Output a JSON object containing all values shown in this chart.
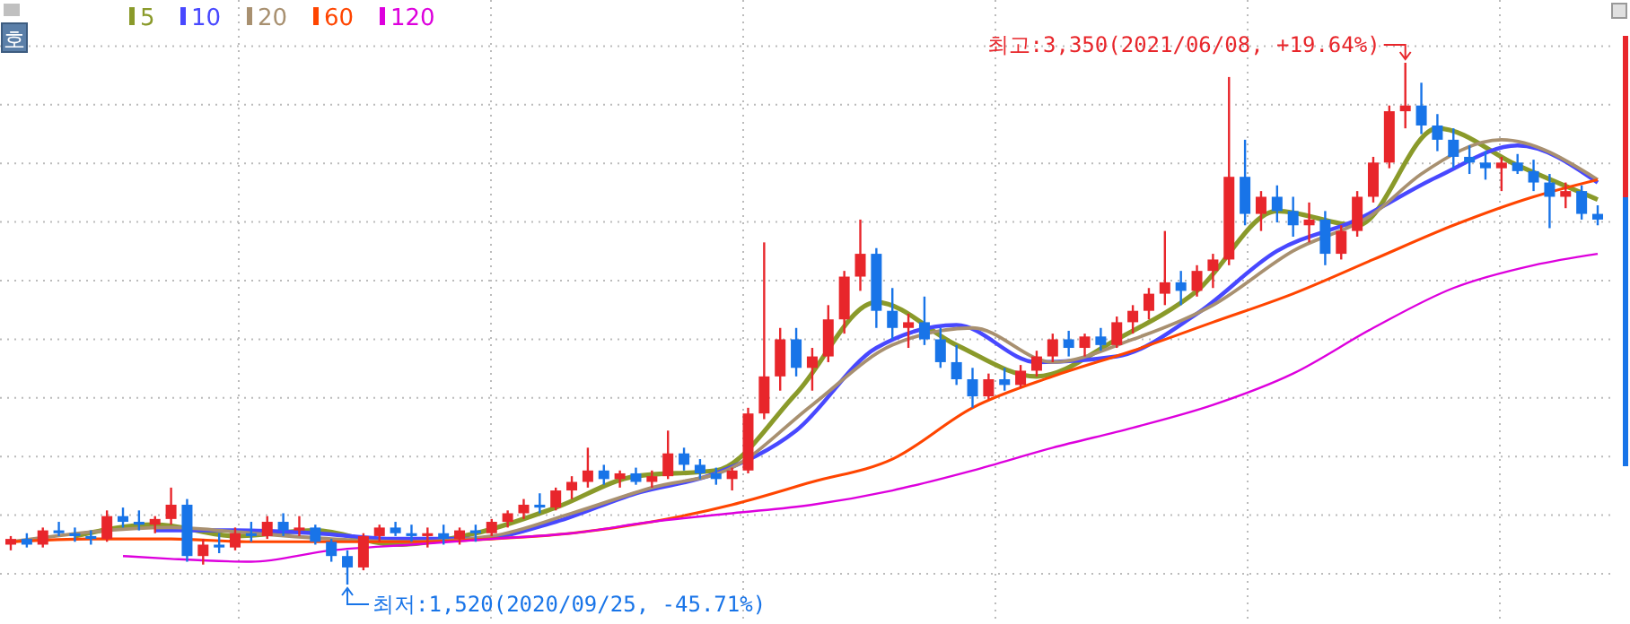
{
  "chart_data": {
    "type": "candlestick",
    "categories": [
      null,
      null,
      null,
      null,
      null,
      null,
      null,
      null,
      null,
      null,
      null,
      null,
      null,
      null,
      null,
      null,
      null,
      null,
      null,
      null,
      null,
      null,
      null,
      null,
      null,
      null,
      null,
      null,
      null,
      null,
      null,
      null,
      null,
      null,
      null,
      null,
      null,
      null,
      null,
      null,
      null,
      null,
      null,
      null,
      null,
      null,
      null,
      null,
      null,
      null,
      null,
      null,
      null,
      null,
      null,
      null,
      null,
      null,
      null,
      null,
      null,
      null,
      null,
      null,
      null,
      null,
      null,
      null,
      null,
      null,
      null,
      null,
      null,
      null,
      null,
      null,
      null,
      null,
      null,
      null,
      null,
      null,
      null,
      null,
      null,
      null,
      null,
      null,
      null,
      null,
      null,
      null,
      null,
      null,
      null,
      null,
      null,
      null,
      null,
      null
    ],
    "ohlc": [
      [
        1660,
        1690,
        1640,
        1680
      ],
      [
        1680,
        1700,
        1650,
        1660
      ],
      [
        1660,
        1720,
        1650,
        1710
      ],
      [
        1710,
        1740,
        1690,
        1700
      ],
      [
        1700,
        1720,
        1670,
        1690
      ],
      [
        1690,
        1710,
        1660,
        1680
      ],
      [
        1680,
        1780,
        1670,
        1760
      ],
      [
        1760,
        1790,
        1720,
        1740
      ],
      [
        1740,
        1780,
        1710,
        1730
      ],
      [
        1730,
        1760,
        1700,
        1750
      ],
      [
        1750,
        1860,
        1730,
        1800
      ],
      [
        1800,
        1820,
        1600,
        1620
      ],
      [
        1620,
        1680,
        1590,
        1660
      ],
      [
        1660,
        1700,
        1630,
        1650
      ],
      [
        1650,
        1720,
        1640,
        1700
      ],
      [
        1700,
        1740,
        1670,
        1690
      ],
      [
        1690,
        1760,
        1680,
        1740
      ],
      [
        1740,
        1770,
        1690,
        1710
      ],
      [
        1710,
        1760,
        1690,
        1720
      ],
      [
        1720,
        1730,
        1660,
        1670
      ],
      [
        1670,
        1680,
        1600,
        1620
      ],
      [
        1620,
        1640,
        1520,
        1580
      ],
      [
        1580,
        1700,
        1570,
        1690
      ],
      [
        1690,
        1730,
        1670,
        1720
      ],
      [
        1720,
        1740,
        1690,
        1700
      ],
      [
        1700,
        1730,
        1670,
        1690
      ],
      [
        1690,
        1720,
        1650,
        1700
      ],
      [
        1700,
        1730,
        1660,
        1680
      ],
      [
        1680,
        1720,
        1660,
        1710
      ],
      [
        1710,
        1730,
        1670,
        1700
      ],
      [
        1700,
        1750,
        1690,
        1740
      ],
      [
        1740,
        1780,
        1720,
        1770
      ],
      [
        1770,
        1820,
        1750,
        1800
      ],
      [
        1800,
        1840,
        1770,
        1790
      ],
      [
        1790,
        1860,
        1780,
        1850
      ],
      [
        1850,
        1900,
        1820,
        1880
      ],
      [
        1880,
        2000,
        1860,
        1920
      ],
      [
        1920,
        1940,
        1870,
        1890
      ],
      [
        1890,
        1920,
        1860,
        1910
      ],
      [
        1910,
        1930,
        1870,
        1880
      ],
      [
        1880,
        1920,
        1860,
        1900
      ],
      [
        1900,
        2060,
        1890,
        1980
      ],
      [
        1980,
        2000,
        1920,
        1940
      ],
      [
        1940,
        1960,
        1890,
        1910
      ],
      [
        1910,
        1930,
        1870,
        1890
      ],
      [
        1890,
        1930,
        1850,
        1920
      ],
      [
        1920,
        2140,
        1910,
        2120
      ],
      [
        2120,
        2720,
        2100,
        2250
      ],
      [
        2250,
        2420,
        2200,
        2380
      ],
      [
        2380,
        2420,
        2250,
        2280
      ],
      [
        2280,
        2350,
        2200,
        2320
      ],
      [
        2320,
        2500,
        2300,
        2450
      ],
      [
        2450,
        2620,
        2400,
        2600
      ],
      [
        2600,
        2800,
        2550,
        2680
      ],
      [
        2680,
        2700,
        2420,
        2480
      ],
      [
        2480,
        2560,
        2380,
        2420
      ],
      [
        2420,
        2470,
        2350,
        2440
      ],
      [
        2440,
        2530,
        2360,
        2380
      ],
      [
        2380,
        2420,
        2280,
        2300
      ],
      [
        2300,
        2360,
        2220,
        2240
      ],
      [
        2240,
        2280,
        2140,
        2180
      ],
      [
        2180,
        2260,
        2170,
        2240
      ],
      [
        2240,
        2280,
        2200,
        2220
      ],
      [
        2220,
        2290,
        2210,
        2270
      ],
      [
        2270,
        2340,
        2250,
        2320
      ],
      [
        2320,
        2400,
        2300,
        2380
      ],
      [
        2380,
        2410,
        2320,
        2350
      ],
      [
        2350,
        2400,
        2320,
        2390
      ],
      [
        2390,
        2420,
        2340,
        2360
      ],
      [
        2360,
        2460,
        2350,
        2440
      ],
      [
        2440,
        2500,
        2400,
        2480
      ],
      [
        2480,
        2560,
        2450,
        2540
      ],
      [
        2540,
        2760,
        2500,
        2580
      ],
      [
        2580,
        2620,
        2500,
        2550
      ],
      [
        2550,
        2640,
        2530,
        2620
      ],
      [
        2620,
        2680,
        2560,
        2660
      ],
      [
        2660,
        3300,
        2640,
        2950
      ],
      [
        2950,
        3080,
        2780,
        2820
      ],
      [
        2820,
        2900,
        2760,
        2880
      ],
      [
        2880,
        2920,
        2790,
        2830
      ],
      [
        2830,
        2880,
        2740,
        2780
      ],
      [
        2780,
        2860,
        2720,
        2800
      ],
      [
        2800,
        2830,
        2640,
        2680
      ],
      [
        2680,
        2780,
        2660,
        2760
      ],
      [
        2760,
        2900,
        2740,
        2880
      ],
      [
        2880,
        3020,
        2860,
        3000
      ],
      [
        3000,
        3200,
        2980,
        3180
      ],
      [
        3180,
        3350,
        3120,
        3200
      ],
      [
        3200,
        3280,
        3100,
        3130
      ],
      [
        3130,
        3170,
        3040,
        3080
      ],
      [
        3080,
        3120,
        2980,
        3020
      ],
      [
        3020,
        3060,
        2960,
        3000
      ],
      [
        3000,
        3040,
        2940,
        2980
      ],
      [
        2980,
        3020,
        2900,
        3000
      ],
      [
        3000,
        3030,
        2960,
        2970
      ],
      [
        2970,
        3010,
        2900,
        2930
      ],
      [
        2930,
        2960,
        2770,
        2880
      ],
      [
        2880,
        2930,
        2840,
        2900
      ],
      [
        2900,
        2920,
        2800,
        2820
      ],
      [
        2820,
        2850,
        2780,
        2800
      ]
    ],
    "colors": [
      "#e8262b",
      "#1874e8",
      "#e8262b",
      "#1874e8",
      "#1874e8",
      "#1874e8",
      "#e8262b",
      "#1874e8",
      "#1874e8",
      "#e8262b",
      "#e8262b",
      "#1874e8",
      "#e8262b",
      "#1874e8",
      "#e8262b",
      "#1874e8",
      "#e8262b",
      "#1874e8",
      "#e8262b",
      "#1874e8",
      "#1874e8",
      "#1874e8",
      "#e8262b",
      "#e8262b",
      "#1874e8",
      "#1874e8",
      "#e8262b",
      "#1874e8",
      "#e8262b",
      "#1874e8",
      "#e8262b",
      "#e8262b",
      "#e8262b",
      "#1874e8",
      "#e8262b",
      "#e8262b",
      "#e8262b",
      "#1874e8",
      "#e8262b",
      "#1874e8",
      "#e8262b",
      "#e8262b",
      "#1874e8",
      "#1874e8",
      "#1874e8",
      "#e8262b",
      "#e8262b",
      "#e8262b",
      "#e8262b",
      "#1874e8",
      "#e8262b",
      "#e8262b",
      "#e8262b",
      "#e8262b",
      "#1874e8",
      "#1874e8",
      "#e8262b",
      "#1874e8",
      "#1874e8",
      "#1874e8",
      "#1874e8",
      "#e8262b",
      "#1874e8",
      "#e8262b",
      "#e8262b",
      "#e8262b",
      "#1874e8",
      "#e8262b",
      "#1874e8",
      "#e8262b",
      "#e8262b",
      "#e8262b",
      "#e8262b",
      "#1874e8",
      "#e8262b",
      "#e8262b",
      "#e8262b",
      "#1874e8",
      "#e8262b",
      "#1874e8",
      "#1874e8",
      "#e8262b",
      "#1874e8",
      "#e8262b",
      "#e8262b",
      "#e8262b",
      "#e8262b",
      "#e8262b",
      "#1874e8",
      "#1874e8",
      "#1874e8",
      "#1874e8",
      "#1874e8",
      "#e8262b",
      "#1874e8",
      "#1874e8",
      "#1874e8",
      "#e8262b",
      "#1874e8",
      "#1874e8"
    ],
    "series": [
      {
        "name": "5",
        "type": "line",
        "color": "#8a9a2a",
        "values": [
          null,
          null,
          null,
          null,
          1690,
          null,
          null,
          null,
          null,
          1730,
          null,
          null,
          null,
          null,
          1690,
          null,
          null,
          null,
          null,
          1710,
          null,
          null,
          null,
          null,
          1660,
          null,
          null,
          null,
          null,
          1700,
          null,
          null,
          null,
          null,
          1790,
          null,
          null,
          null,
          null,
          1900,
          null,
          null,
          null,
          null,
          1920,
          null,
          null,
          null,
          null,
          2190,
          null,
          null,
          null,
          null,
          2510,
          null,
          null,
          null,
          null,
          2360,
          null,
          null,
          null,
          null,
          2250,
          null,
          null,
          null,
          null,
          2380,
          null,
          null,
          null,
          null,
          2550,
          null,
          null,
          null,
          null,
          2830,
          null,
          null,
          null,
          null,
          2780,
          null,
          null,
          null,
          null,
          3120,
          null,
          null,
          null,
          null,
          2990,
          null,
          null,
          null,
          null,
          2870
        ]
      },
      {
        "name": "10",
        "type": "line",
        "color": "#4848ff",
        "values": [
          null,
          null,
          null,
          null,
          null,
          null,
          null,
          null,
          null,
          1710,
          null,
          null,
          null,
          null,
          1710,
          null,
          null,
          null,
          null,
          1700,
          null,
          null,
          null,
          null,
          1680,
          null,
          null,
          null,
          null,
          1680,
          null,
          null,
          null,
          null,
          1740,
          null,
          null,
          null,
          null,
          1840,
          null,
          null,
          null,
          null,
          1910,
          null,
          null,
          null,
          null,
          2060,
          null,
          null,
          null,
          null,
          2350,
          null,
          null,
          null,
          null,
          2430,
          null,
          null,
          null,
          null,
          2300,
          null,
          null,
          null,
          null,
          2320,
          null,
          null,
          null,
          null,
          2470,
          null,
          null,
          null,
          null,
          2690,
          null,
          null,
          null,
          null,
          2800,
          null,
          null,
          null,
          null,
          2950,
          null,
          null,
          null,
          null,
          3060,
          null,
          null,
          null,
          null,
          2930
        ]
      },
      {
        "name": "20",
        "type": "line",
        "color": "#a89070",
        "values": [
          1670,
          null,
          null,
          null,
          null,
          null,
          null,
          null,
          null,
          null,
          1720,
          null,
          null,
          null,
          null,
          1700,
          null,
          null,
          null,
          null,
          1680,
          null,
          null,
          null,
          null,
          1670,
          null,
          null,
          null,
          null,
          1690,
          null,
          null,
          null,
          null,
          1770,
          null,
          null,
          null,
          null,
          1860,
          null,
          null,
          null,
          null,
          1930,
          null,
          null,
          null,
          null,
          2150,
          null,
          null,
          null,
          null,
          2360,
          null,
          null,
          null,
          null,
          2420,
          null,
          null,
          null,
          null,
          2300,
          null,
          null,
          null,
          null,
          2380,
          null,
          null,
          null,
          null,
          2500,
          null,
          null,
          null,
          null,
          2690,
          null,
          null,
          null,
          null,
          2820,
          null,
          null,
          2960,
          null,
          null,
          null,
          null,
          3080,
          null,
          null,
          null,
          null,
          null,
          2940
        ]
      },
      {
        "name": "60",
        "type": "line",
        "color": "#ff4500",
        "values": [
          1670,
          null,
          null,
          null,
          null,
          1680,
          null,
          null,
          null,
          null,
          1680,
          null,
          null,
          null,
          null,
          1670,
          null,
          null,
          null,
          null,
          1670,
          null,
          null,
          null,
          null,
          1670,
          null,
          null,
          null,
          null,
          1680,
          null,
          null,
          null,
          null,
          1700,
          null,
          null,
          null,
          null,
          1740,
          null,
          null,
          null,
          null,
          1800,
          null,
          null,
          null,
          null,
          1880,
          null,
          null,
          null,
          null,
          1960,
          null,
          null,
          null,
          null,
          2140,
          null,
          null,
          null,
          null,
          2250,
          null,
          null,
          null,
          null,
          2340,
          null,
          null,
          null,
          null,
          2440,
          null,
          null,
          null,
          null,
          2540,
          null,
          null,
          null,
          null,
          2660,
          null,
          null,
          null,
          null,
          2780,
          null,
          null,
          null,
          null,
          2880,
          null,
          null,
          null,
          2940
        ]
      },
      {
        "name": "120",
        "type": "line",
        "color": "#dd00dd",
        "values": [
          null,
          null,
          null,
          null,
          null,
          null,
          null,
          1620,
          null,
          null,
          1610,
          null,
          null,
          null,
          null,
          1600,
          null,
          null,
          null,
          null,
          1640,
          null,
          null,
          null,
          null,
          1660,
          null,
          null,
          null,
          null,
          1680,
          null,
          null,
          null,
          null,
          1700,
          null,
          null,
          null,
          null,
          1740,
          null,
          null,
          null,
          null,
          1770,
          null,
          null,
          null,
          null,
          1800,
          null,
          null,
          null,
          null,
          1850,
          null,
          null,
          null,
          null,
          1920,
          null,
          null,
          null,
          null,
          2000,
          null,
          null,
          null,
          null,
          2070,
          null,
          null,
          null,
          null,
          2150,
          null,
          null,
          null,
          null,
          2260,
          null,
          null,
          null,
          null,
          2420,
          null,
          null,
          null,
          null,
          2560,
          null,
          null,
          null,
          null,
          2640,
          null,
          null,
          null,
          2680
        ]
      }
    ],
    "annotations": [
      "최고:3,350(2021/06/08, +19.64%)",
      "최저:1,520(2020/09/25, -45.71%)",
      "호"
    ],
    "grid": true,
    "legend": "top left"
  }
}
